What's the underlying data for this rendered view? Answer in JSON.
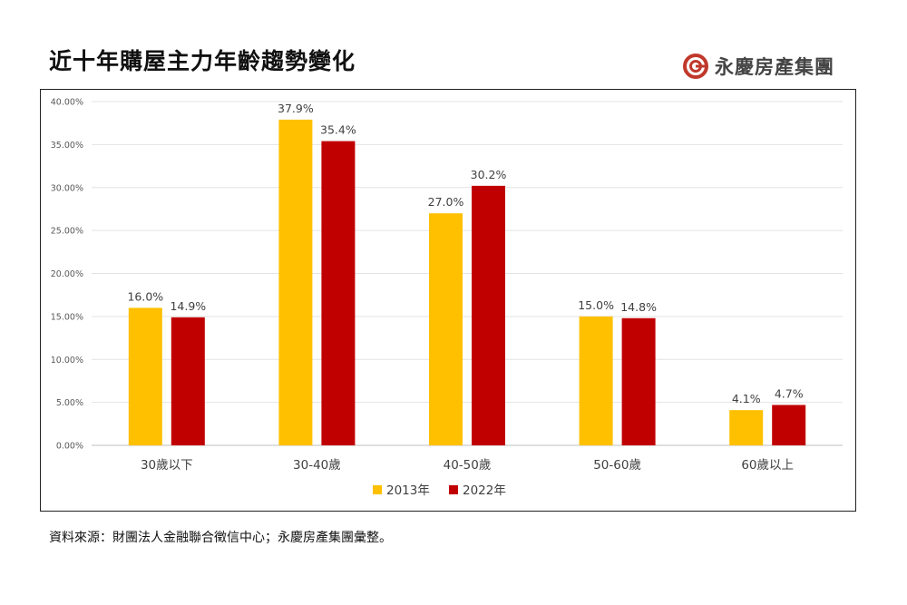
{
  "title": "近十年購屋主力年齡趨勢變化",
  "brand": {
    "name": "永慶房產集團",
    "logo_icon": "yungching-logo-icon",
    "logo_color": "#c0392b"
  },
  "source": "資料來源：財團法人金融聯合徵信中心；永慶房產集團彙整。",
  "chart_data": {
    "type": "bar",
    "categories": [
      "30歲以下",
      "30-40歲",
      "40-50歲",
      "50-60歲",
      "60歲以上"
    ],
    "series": [
      {
        "name": "2013年",
        "color": "#ffc000",
        "values": [
          16.0,
          37.9,
          27.0,
          15.0,
          4.1
        ],
        "labels": [
          "16.0%",
          "37.9%",
          "27.0%",
          "15.0%",
          "4.1%"
        ]
      },
      {
        "name": "2022年",
        "color": "#c00000",
        "values": [
          14.9,
          35.4,
          30.2,
          14.8,
          4.7
        ],
        "labels": [
          "14.9%",
          "35.4%",
          "30.2%",
          "14.8%",
          "4.7%"
        ]
      }
    ],
    "yticks": [
      0,
      5,
      10,
      15,
      20,
      25,
      30,
      35,
      40
    ],
    "ytick_labels": [
      "0.00%",
      "5.00%",
      "10.00%",
      "15.00%",
      "20.00%",
      "25.00%",
      "30.00%",
      "35.00%",
      "40.00%"
    ],
    "ylim": [
      0,
      40
    ],
    "grid": true,
    "legend_position": "bottom",
    "xlabel": "",
    "ylabel": ""
  }
}
